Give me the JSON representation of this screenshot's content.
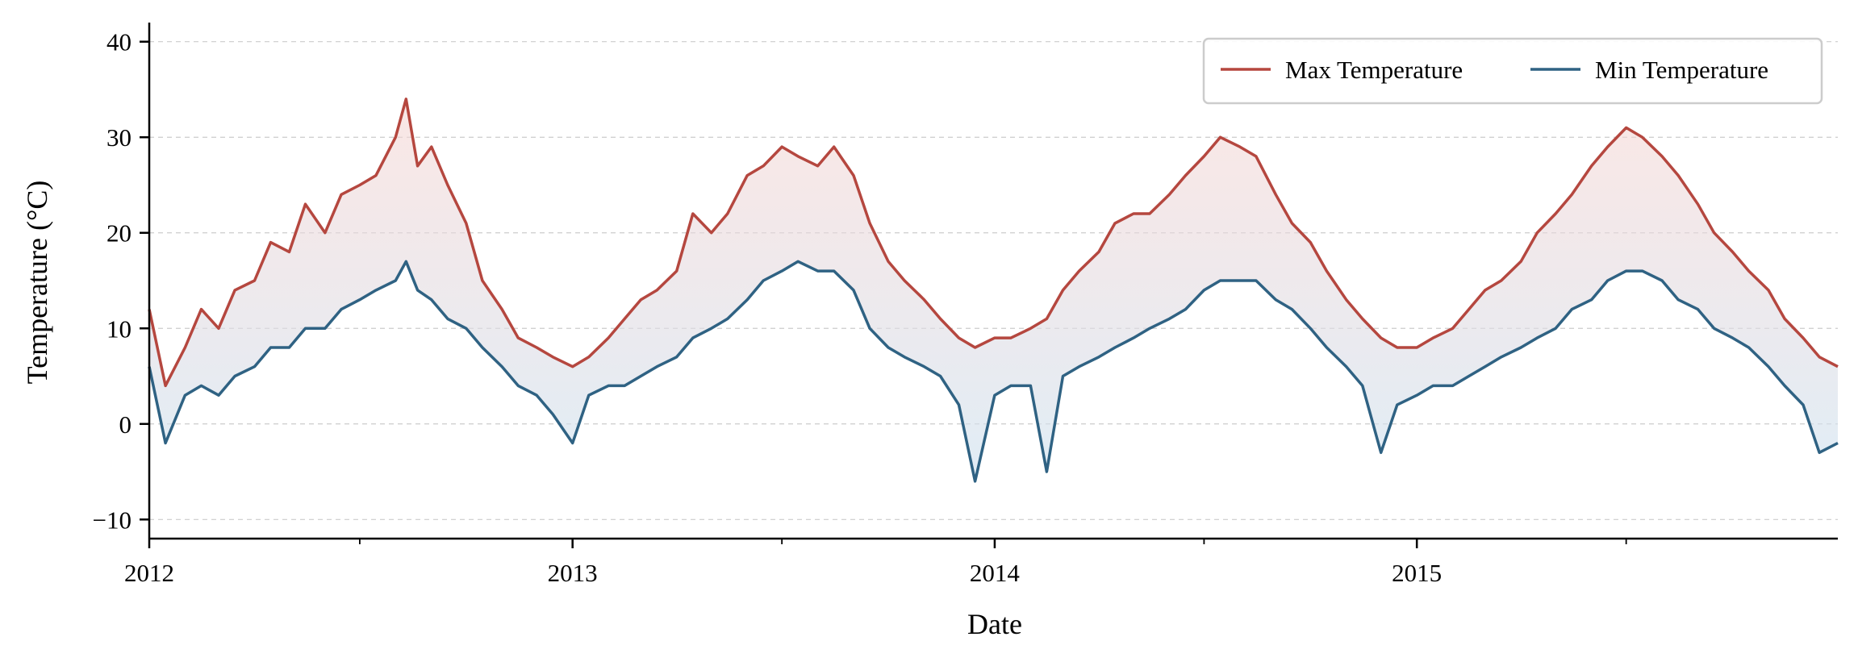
{
  "chart_data": {
    "type": "line",
    "title": "",
    "xlabel": "Date",
    "ylabel": "Temperature (°C)",
    "xlim": [
      "2012-01-01",
      "2015-12-31"
    ],
    "ylim": [
      -12,
      42
    ],
    "x_ticks": [
      {
        "date": "2012-01-01",
        "label": "2012"
      },
      {
        "date": "2013-01-01",
        "label": "2013"
      },
      {
        "date": "2014-01-01",
        "label": "2014"
      },
      {
        "date": "2015-01-01",
        "label": "2015"
      }
    ],
    "x_minor_ticks": [
      "2012-07-01",
      "2013-07-01",
      "2014-07-01",
      "2015-07-01"
    ],
    "y_ticks": [
      {
        "value": -10,
        "label": "−10"
      },
      {
        "value": 0,
        "label": "0"
      },
      {
        "value": 10,
        "label": "10"
      },
      {
        "value": 20,
        "label": "20"
      },
      {
        "value": 30,
        "label": "30"
      },
      {
        "value": 40,
        "label": "40"
      }
    ],
    "grid": "horizontal dashed",
    "legend_position": "top-right",
    "fill_between": {
      "upper_color": "#f6d3d0",
      "lower_color": "#cfe3f1"
    },
    "series": [
      {
        "name": "Max Temperature",
        "color": "#b5473f",
        "points": [
          [
            "2012-01-01",
            12
          ],
          [
            "2012-01-15",
            4
          ],
          [
            "2012-02-01",
            8
          ],
          [
            "2012-02-15",
            12
          ],
          [
            "2012-03-01",
            10
          ],
          [
            "2012-03-15",
            14
          ],
          [
            "2012-04-01",
            15
          ],
          [
            "2012-04-15",
            19
          ],
          [
            "2012-05-01",
            18
          ],
          [
            "2012-05-15",
            23
          ],
          [
            "2012-06-01",
            20
          ],
          [
            "2012-06-15",
            24
          ],
          [
            "2012-07-01",
            25
          ],
          [
            "2012-07-15",
            26
          ],
          [
            "2012-08-01",
            30
          ],
          [
            "2012-08-10",
            34
          ],
          [
            "2012-08-20",
            27
          ],
          [
            "2012-09-01",
            29
          ],
          [
            "2012-09-15",
            25
          ],
          [
            "2012-10-01",
            21
          ],
          [
            "2012-10-15",
            15
          ],
          [
            "2012-11-01",
            12
          ],
          [
            "2012-11-15",
            9
          ],
          [
            "2012-12-01",
            8
          ],
          [
            "2012-12-15",
            7
          ],
          [
            "2013-01-01",
            6
          ],
          [
            "2013-01-15",
            7
          ],
          [
            "2013-02-01",
            9
          ],
          [
            "2013-02-15",
            11
          ],
          [
            "2013-03-01",
            13
          ],
          [
            "2013-03-15",
            14
          ],
          [
            "2013-04-01",
            16
          ],
          [
            "2013-04-15",
            22
          ],
          [
            "2013-05-01",
            20
          ],
          [
            "2013-05-15",
            22
          ],
          [
            "2013-06-01",
            26
          ],
          [
            "2013-06-15",
            27
          ],
          [
            "2013-07-01",
            29
          ],
          [
            "2013-07-15",
            28
          ],
          [
            "2013-08-01",
            27
          ],
          [
            "2013-08-15",
            29
          ],
          [
            "2013-09-01",
            26
          ],
          [
            "2013-09-15",
            21
          ],
          [
            "2013-10-01",
            17
          ],
          [
            "2013-10-15",
            15
          ],
          [
            "2013-11-01",
            13
          ],
          [
            "2013-11-15",
            11
          ],
          [
            "2013-12-01",
            9
          ],
          [
            "2013-12-15",
            8
          ],
          [
            "2014-01-01",
            9
          ],
          [
            "2014-01-15",
            9
          ],
          [
            "2014-02-01",
            10
          ],
          [
            "2014-02-15",
            11
          ],
          [
            "2014-03-01",
            14
          ],
          [
            "2014-03-15",
            16
          ],
          [
            "2014-04-01",
            18
          ],
          [
            "2014-04-15",
            21
          ],
          [
            "2014-05-01",
            22
          ],
          [
            "2014-05-15",
            22
          ],
          [
            "2014-06-01",
            24
          ],
          [
            "2014-06-15",
            26
          ],
          [
            "2014-07-01",
            28
          ],
          [
            "2014-07-15",
            30
          ],
          [
            "2014-08-01",
            29
          ],
          [
            "2014-08-15",
            28
          ],
          [
            "2014-09-01",
            24
          ],
          [
            "2014-09-15",
            21
          ],
          [
            "2014-10-01",
            19
          ],
          [
            "2014-10-15",
            16
          ],
          [
            "2014-11-01",
            13
          ],
          [
            "2014-11-15",
            11
          ],
          [
            "2014-12-01",
            9
          ],
          [
            "2014-12-15",
            8
          ],
          [
            "2015-01-01",
            8
          ],
          [
            "2015-01-15",
            9
          ],
          [
            "2015-02-01",
            10
          ],
          [
            "2015-02-15",
            12
          ],
          [
            "2015-03-01",
            14
          ],
          [
            "2015-03-15",
            15
          ],
          [
            "2015-04-01",
            17
          ],
          [
            "2015-04-15",
            20
          ],
          [
            "2015-05-01",
            22
          ],
          [
            "2015-05-15",
            24
          ],
          [
            "2015-06-01",
            27
          ],
          [
            "2015-06-15",
            29
          ],
          [
            "2015-07-01",
            31
          ],
          [
            "2015-07-15",
            30
          ],
          [
            "2015-08-01",
            28
          ],
          [
            "2015-08-15",
            26
          ],
          [
            "2015-09-01",
            23
          ],
          [
            "2015-09-15",
            20
          ],
          [
            "2015-10-01",
            18
          ],
          [
            "2015-10-15",
            16
          ],
          [
            "2015-11-01",
            14
          ],
          [
            "2015-11-15",
            11
          ],
          [
            "2015-12-01",
            9
          ],
          [
            "2015-12-15",
            7
          ],
          [
            "2015-12-31",
            6
          ]
        ]
      },
      {
        "name": "Min Temperature",
        "color": "#2f6283",
        "points": [
          [
            "2012-01-01",
            6
          ],
          [
            "2012-01-15",
            -2
          ],
          [
            "2012-02-01",
            3
          ],
          [
            "2012-02-15",
            4
          ],
          [
            "2012-03-01",
            3
          ],
          [
            "2012-03-15",
            5
          ],
          [
            "2012-04-01",
            6
          ],
          [
            "2012-04-15",
            8
          ],
          [
            "2012-05-01",
            8
          ],
          [
            "2012-05-15",
            10
          ],
          [
            "2012-06-01",
            10
          ],
          [
            "2012-06-15",
            12
          ],
          [
            "2012-07-01",
            13
          ],
          [
            "2012-07-15",
            14
          ],
          [
            "2012-08-01",
            15
          ],
          [
            "2012-08-10",
            17
          ],
          [
            "2012-08-20",
            14
          ],
          [
            "2012-09-01",
            13
          ],
          [
            "2012-09-15",
            11
          ],
          [
            "2012-10-01",
            10
          ],
          [
            "2012-10-15",
            8
          ],
          [
            "2012-11-01",
            6
          ],
          [
            "2012-11-15",
            4
          ],
          [
            "2012-12-01",
            3
          ],
          [
            "2012-12-15",
            1
          ],
          [
            "2013-01-01",
            -2
          ],
          [
            "2013-01-15",
            3
          ],
          [
            "2013-02-01",
            4
          ],
          [
            "2013-02-15",
            4
          ],
          [
            "2013-03-01",
            5
          ],
          [
            "2013-03-15",
            6
          ],
          [
            "2013-04-01",
            7
          ],
          [
            "2013-04-15",
            9
          ],
          [
            "2013-05-01",
            10
          ],
          [
            "2013-05-15",
            11
          ],
          [
            "2013-06-01",
            13
          ],
          [
            "2013-06-15",
            15
          ],
          [
            "2013-07-01",
            16
          ],
          [
            "2013-07-15",
            17
          ],
          [
            "2013-08-01",
            16
          ],
          [
            "2013-08-15",
            16
          ],
          [
            "2013-09-01",
            14
          ],
          [
            "2013-09-15",
            10
          ],
          [
            "2013-10-01",
            8
          ],
          [
            "2013-10-15",
            7
          ],
          [
            "2013-11-01",
            6
          ],
          [
            "2013-11-15",
            5
          ],
          [
            "2013-12-01",
            2
          ],
          [
            "2013-12-15",
            -6
          ],
          [
            "2014-01-01",
            3
          ],
          [
            "2014-01-15",
            4
          ],
          [
            "2014-02-01",
            4
          ],
          [
            "2014-02-15",
            -5
          ],
          [
            "2014-03-01",
            5
          ],
          [
            "2014-03-15",
            6
          ],
          [
            "2014-04-01",
            7
          ],
          [
            "2014-04-15",
            8
          ],
          [
            "2014-05-01",
            9
          ],
          [
            "2014-05-15",
            10
          ],
          [
            "2014-06-01",
            11
          ],
          [
            "2014-06-15",
            12
          ],
          [
            "2014-07-01",
            14
          ],
          [
            "2014-07-15",
            15
          ],
          [
            "2014-08-01",
            15
          ],
          [
            "2014-08-15",
            15
          ],
          [
            "2014-09-01",
            13
          ],
          [
            "2014-09-15",
            12
          ],
          [
            "2014-10-01",
            10
          ],
          [
            "2014-10-15",
            8
          ],
          [
            "2014-11-01",
            6
          ],
          [
            "2014-11-15",
            4
          ],
          [
            "2014-12-01",
            -3
          ],
          [
            "2014-12-15",
            2
          ],
          [
            "2015-01-01",
            3
          ],
          [
            "2015-01-15",
            4
          ],
          [
            "2015-02-01",
            4
          ],
          [
            "2015-02-15",
            5
          ],
          [
            "2015-03-01",
            6
          ],
          [
            "2015-03-15",
            7
          ],
          [
            "2015-04-01",
            8
          ],
          [
            "2015-04-15",
            9
          ],
          [
            "2015-05-01",
            10
          ],
          [
            "2015-05-15",
            12
          ],
          [
            "2015-06-01",
            13
          ],
          [
            "2015-06-15",
            15
          ],
          [
            "2015-07-01",
            16
          ],
          [
            "2015-07-15",
            16
          ],
          [
            "2015-08-01",
            15
          ],
          [
            "2015-08-15",
            13
          ],
          [
            "2015-09-01",
            12
          ],
          [
            "2015-09-15",
            10
          ],
          [
            "2015-10-01",
            9
          ],
          [
            "2015-10-15",
            8
          ],
          [
            "2015-11-01",
            6
          ],
          [
            "2015-11-15",
            4
          ],
          [
            "2015-12-01",
            2
          ],
          [
            "2015-12-15",
            -3
          ],
          [
            "2015-12-31",
            -2
          ]
        ]
      }
    ]
  }
}
